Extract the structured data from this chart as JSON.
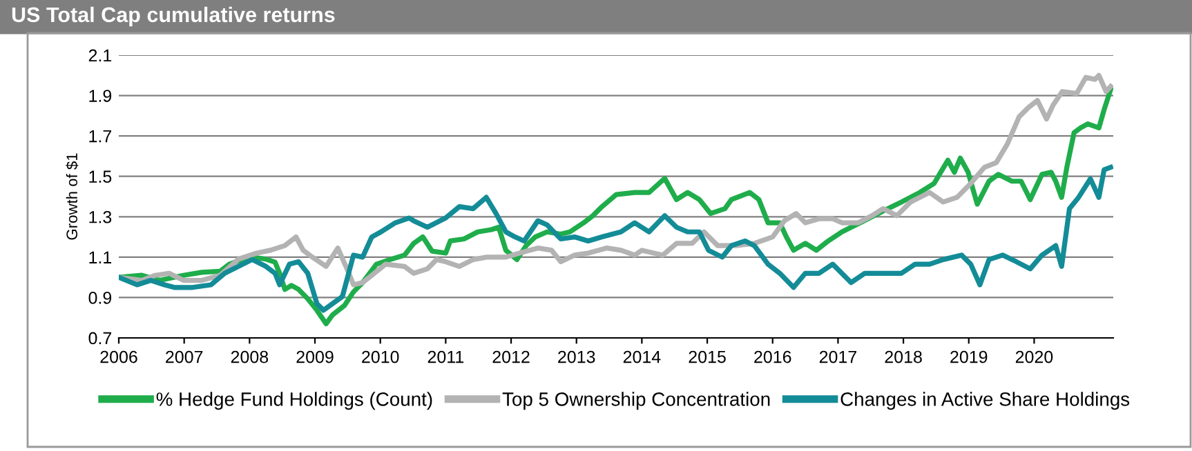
{
  "chart_data": {
    "type": "line",
    "title": "US Total Cap cumulative returns",
    "ylabel": "Growth of $1",
    "xlim": [
      2006,
      2021.21
    ],
    "xticks": [
      2006,
      2007,
      2008,
      2009,
      2010,
      2011,
      2012,
      2013,
      2014,
      2015,
      2016,
      2017,
      2018,
      2019,
      2020
    ],
    "ylim": [
      0.7,
      2.1
    ],
    "yticks": [
      0.7,
      0.9,
      1.1,
      1.3,
      1.5,
      1.7,
      1.9,
      2.1
    ],
    "grid": "y",
    "legend": "bottom",
    "marker": "none",
    "line_style": "solid",
    "series": [
      {
        "name": "% Hedge Fund Holdings (Count)",
        "color": "#1fad4b",
        "x": [
          2006.0,
          2006.35,
          2006.63,
          2006.99,
          2007.27,
          2007.55,
          2007.69,
          2007.9,
          2008.04,
          2008.25,
          2008.39,
          2008.46,
          2008.54,
          2008.64,
          2008.75,
          2008.89,
          2009.03,
          2009.17,
          2009.27,
          2009.45,
          2009.59,
          2009.73,
          2009.94,
          2010.15,
          2010.37,
          2010.51,
          2010.65,
          2010.79,
          2011.0,
          2011.07,
          2011.28,
          2011.49,
          2011.7,
          2011.81,
          2011.92,
          2012.09,
          2012.23,
          2012.37,
          2012.55,
          2012.76,
          2012.9,
          2013.11,
          2013.25,
          2013.39,
          2013.61,
          2013.89,
          2014.11,
          2014.35,
          2014.53,
          2014.7,
          2014.88,
          2015.05,
          2015.27,
          2015.37,
          2015.65,
          2015.79,
          2015.93,
          2016.11,
          2016.21,
          2016.32,
          2016.5,
          2016.67,
          2016.85,
          2017.06,
          2017.34,
          2017.69,
          2017.97,
          2018.25,
          2018.47,
          2018.57,
          2018.68,
          2018.78,
          2018.87,
          2018.99,
          2019.13,
          2019.31,
          2019.45,
          2019.66,
          2019.8,
          2019.94,
          2020.12,
          2020.26,
          2020.33,
          2020.42,
          2020.5,
          2020.61,
          2020.71,
          2020.82,
          2020.99,
          2021.07,
          2021.17
        ],
        "values": [
          1.0,
          1.01,
          0.985,
          1.01,
          1.025,
          1.03,
          1.065,
          1.09,
          1.1,
          1.09,
          1.075,
          1.02,
          0.94,
          0.96,
          0.94,
          0.894,
          0.837,
          0.77,
          0.814,
          0.86,
          0.928,
          0.974,
          1.065,
          1.088,
          1.11,
          1.168,
          1.2,
          1.13,
          1.12,
          1.18,
          1.19,
          1.225,
          1.236,
          1.248,
          1.134,
          1.088,
          1.157,
          1.2,
          1.225,
          1.214,
          1.225,
          1.27,
          1.305,
          1.35,
          1.41,
          1.42,
          1.42,
          1.49,
          1.385,
          1.42,
          1.385,
          1.316,
          1.34,
          1.385,
          1.42,
          1.385,
          1.27,
          1.27,
          1.2,
          1.134,
          1.168,
          1.134,
          1.18,
          1.225,
          1.27,
          1.328,
          1.373,
          1.42,
          1.465,
          1.52,
          1.58,
          1.52,
          1.59,
          1.52,
          1.362,
          1.476,
          1.51,
          1.476,
          1.476,
          1.385,
          1.51,
          1.52,
          1.476,
          1.396,
          1.545,
          1.716,
          1.74,
          1.76,
          1.74,
          1.83,
          1.93
        ]
      },
      {
        "name": "Top 5 Ownership Concentration",
        "color": "#b3b3b3",
        "x": [
          2006.0,
          2006.35,
          2006.56,
          2006.77,
          2006.99,
          2007.27,
          2007.55,
          2007.83,
          2008.11,
          2008.32,
          2008.54,
          2008.71,
          2008.82,
          2008.96,
          2009.17,
          2009.35,
          2009.49,
          2009.59,
          2009.73,
          2009.87,
          2010.08,
          2010.37,
          2010.51,
          2010.72,
          2010.86,
          2011.0,
          2011.21,
          2011.42,
          2011.63,
          2011.92,
          2012.13,
          2012.41,
          2012.62,
          2012.76,
          2012.97,
          2013.18,
          2013.46,
          2013.68,
          2013.89,
          2014.0,
          2014.32,
          2014.53,
          2014.77,
          2014.95,
          2015.16,
          2015.44,
          2015.72,
          2016.0,
          2016.18,
          2016.36,
          2016.5,
          2016.71,
          2016.92,
          2017.06,
          2017.31,
          2017.52,
          2017.69,
          2017.9,
          2018.11,
          2018.4,
          2018.61,
          2018.82,
          2019.03,
          2019.24,
          2019.42,
          2019.59,
          2019.77,
          2019.91,
          2020.05,
          2020.19,
          2020.29,
          2020.43,
          2020.65,
          2020.79,
          2020.93,
          2020.99,
          2021.1,
          2021.17
        ],
        "values": [
          1.0,
          0.985,
          1.01,
          1.02,
          0.985,
          0.985,
          1.01,
          1.09,
          1.12,
          1.134,
          1.157,
          1.2,
          1.134,
          1.1,
          1.054,
          1.145,
          1.042,
          0.963,
          0.974,
          1.01,
          1.065,
          1.054,
          1.02,
          1.042,
          1.088,
          1.077,
          1.054,
          1.088,
          1.1,
          1.1,
          1.12,
          1.145,
          1.134,
          1.077,
          1.11,
          1.12,
          1.145,
          1.134,
          1.11,
          1.134,
          1.11,
          1.168,
          1.168,
          1.225,
          1.157,
          1.157,
          1.168,
          1.2,
          1.28,
          1.316,
          1.27,
          1.29,
          1.29,
          1.27,
          1.27,
          1.305,
          1.34,
          1.305,
          1.373,
          1.42,
          1.373,
          1.396,
          1.465,
          1.545,
          1.568,
          1.66,
          1.795,
          1.84,
          1.876,
          1.784,
          1.853,
          1.92,
          1.91,
          1.99,
          1.98,
          2.0,
          1.92,
          1.945
        ]
      },
      {
        "name": "Changes in Active Share Holdings",
        "color": "#138c97",
        "x": [
          2006.0,
          2006.28,
          2006.49,
          2006.7,
          2006.85,
          2007.13,
          2007.41,
          2007.62,
          2007.83,
          2008.04,
          2008.25,
          2008.39,
          2008.46,
          2008.61,
          2008.75,
          2008.89,
          2009.03,
          2009.13,
          2009.27,
          2009.42,
          2009.59,
          2009.73,
          2009.87,
          2010.01,
          2010.23,
          2010.44,
          2010.51,
          2010.72,
          2011.0,
          2011.21,
          2011.42,
          2011.62,
          2011.77,
          2011.92,
          2012.06,
          2012.2,
          2012.41,
          2012.55,
          2012.76,
          2012.97,
          2013.18,
          2013.39,
          2013.68,
          2013.89,
          2014.11,
          2014.35,
          2014.53,
          2014.7,
          2014.88,
          2015.02,
          2015.23,
          2015.37,
          2015.58,
          2015.72,
          2015.93,
          2016.11,
          2016.32,
          2016.5,
          2016.71,
          2016.92,
          2017.2,
          2017.41,
          2017.69,
          2017.97,
          2018.18,
          2018.4,
          2018.61,
          2018.89,
          2019.03,
          2019.17,
          2019.31,
          2019.52,
          2019.73,
          2019.94,
          2020.12,
          2020.33,
          2020.42,
          2020.54,
          2020.68,
          2020.86,
          2020.99,
          2021.07,
          2021.17
        ],
        "values": [
          1.0,
          0.963,
          0.985,
          0.963,
          0.95,
          0.95,
          0.963,
          1.02,
          1.054,
          1.088,
          1.054,
          1.02,
          0.963,
          1.065,
          1.077,
          1.02,
          0.87,
          0.837,
          0.87,
          0.905,
          1.11,
          1.1,
          1.2,
          1.225,
          1.27,
          1.294,
          1.28,
          1.248,
          1.294,
          1.35,
          1.34,
          1.396,
          1.316,
          1.225,
          1.2,
          1.18,
          1.28,
          1.26,
          1.19,
          1.2,
          1.18,
          1.2,
          1.225,
          1.27,
          1.225,
          1.305,
          1.248,
          1.225,
          1.225,
          1.134,
          1.1,
          1.157,
          1.18,
          1.157,
          1.065,
          1.02,
          0.95,
          1.02,
          1.02,
          1.065,
          0.974,
          1.02,
          1.02,
          1.02,
          1.065,
          1.065,
          1.088,
          1.11,
          1.065,
          0.963,
          1.088,
          1.11,
          1.077,
          1.042,
          1.11,
          1.157,
          1.054,
          1.34,
          1.396,
          1.488,
          1.396,
          1.533,
          1.545
        ]
      }
    ]
  }
}
